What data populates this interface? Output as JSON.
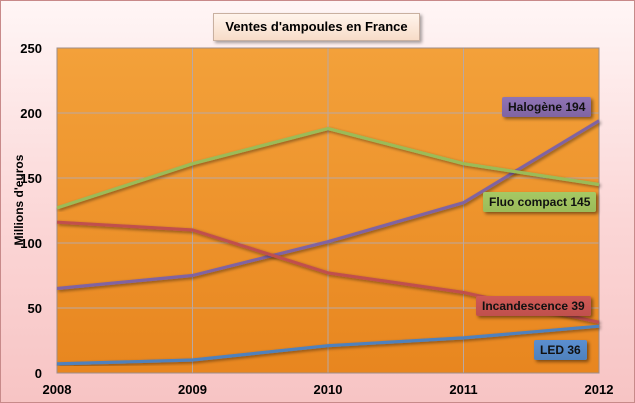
{
  "chart_data": {
    "type": "line",
    "title": "Ventes d'ampoules  en France",
    "ylabel": "Millions d'euros",
    "xlabel": "",
    "x": [
      "2008",
      "2009",
      "2010",
      "2011",
      "2012"
    ],
    "ylim": [
      0,
      250
    ],
    "yticks": [
      0,
      50,
      100,
      150,
      200,
      250
    ],
    "grid": true,
    "series": [
      {
        "key": "halogene",
        "values": [
          65,
          75,
          101,
          131,
          194
        ],
        "color": "#8064a2",
        "label": "Halogène 194",
        "label_bg": "#8f74b6"
      },
      {
        "key": "fluo",
        "values": [
          127,
          161,
          188,
          161,
          145
        ],
        "color": "#9bbb59",
        "label": "Fluo compact 145",
        "label_bg": "#a6c964"
      },
      {
        "key": "incandescence",
        "values": [
          116,
          110,
          77,
          62,
          39
        ],
        "color": "#c0504d",
        "label": "Incandescence 39",
        "label_bg": "#cf5a56"
      },
      {
        "key": "led",
        "values": [
          7,
          10,
          21,
          27,
          36
        ],
        "color": "#4f81bd",
        "label": "LED  36",
        "label_bg": "#5b8fd0"
      }
    ]
  }
}
